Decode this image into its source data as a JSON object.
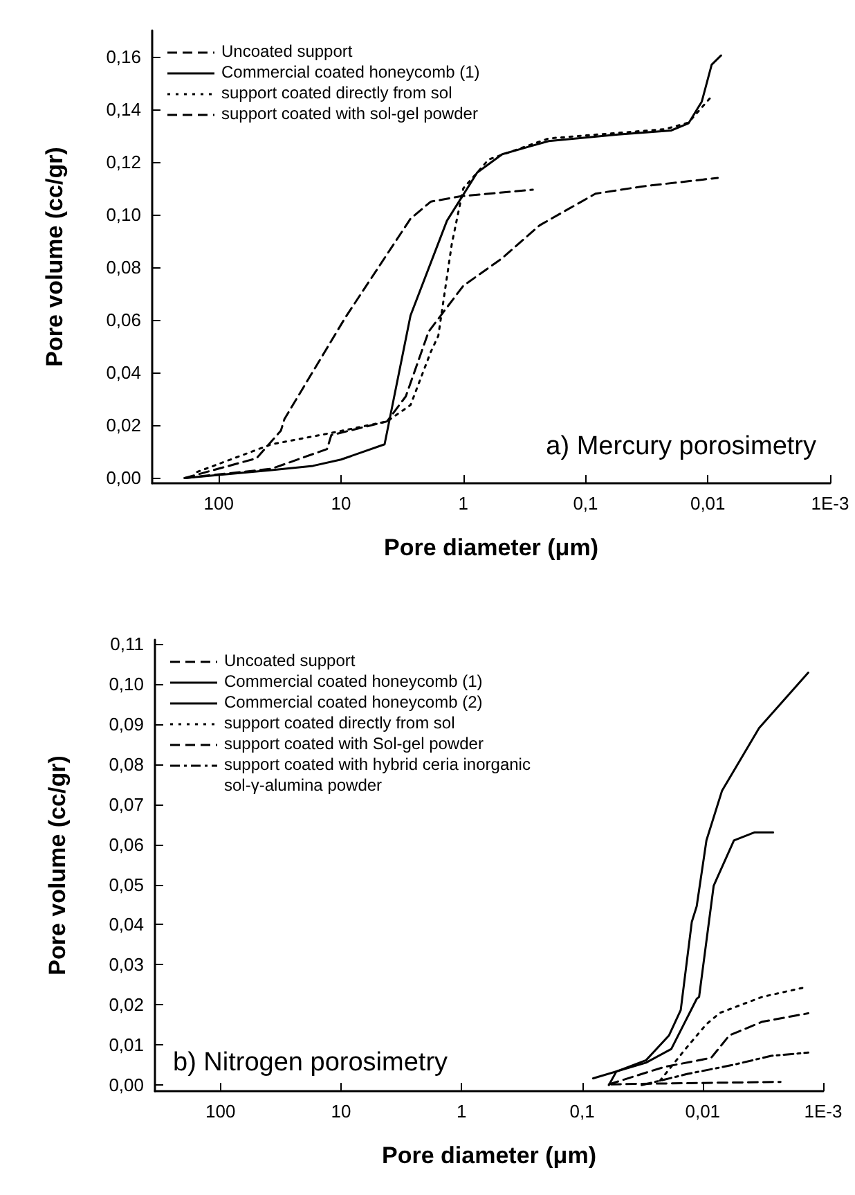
{
  "chart_data": [
    {
      "type": "line",
      "xlabel": "Pore diameter (μm)",
      "ylabel": "Pore volume (cc/gr)",
      "annotations": [
        "a) Mercury porosimetry"
      ],
      "log": "x",
      "grid": false,
      "legend": "top left",
      "marker": "none",
      "xlim": [
        350,
        0.001
      ],
      "xticks": [
        {
          "value": 100,
          "label": "100"
        },
        {
          "value": 10,
          "label": "10"
        },
        {
          "value": 1,
          "label": "1"
        },
        {
          "value": 0.1,
          "label": "0,1"
        },
        {
          "value": 0.01,
          "label": "0,01"
        },
        {
          "value": 0.001,
          "label": "1E-3"
        }
      ],
      "ylim": [
        -0.002,
        0.17
      ],
      "yticks": [
        {
          "value": 0,
          "label": "0,00"
        },
        {
          "value": 0.02,
          "label": "0,02"
        },
        {
          "value": 0.04,
          "label": "0,04"
        },
        {
          "value": 0.06,
          "label": "0,06"
        },
        {
          "value": 0.08,
          "label": "0,08"
        },
        {
          "value": 0.1,
          "label": "0,10"
        },
        {
          "value": 0.12,
          "label": "0,12"
        },
        {
          "value": 0.14,
          "label": "0,14"
        },
        {
          "value": 0.16,
          "label": "0,16"
        }
      ],
      "series": [
        {
          "name": "Uncoated support",
          "color": "#000000",
          "line_style": "dashed",
          "x": [
            190,
            49,
            31,
            29,
            9.2,
            2.7,
            1.84,
            1.05,
            0.27
          ],
          "values": [
            0,
            0.0075,
            0.018,
            0.0224,
            0.061,
            0.0985,
            0.105,
            0.107,
            0.1095
          ]
        },
        {
          "name": "Commercial coated honeycomb (1)",
          "color": "#000000",
          "line_style": "solid",
          "x": [
            190,
            37,
            17,
            10,
            4.4,
            2.7,
            1.36,
            0.77,
            0.48,
            0.2,
            0.054,
            0.02,
            0.0144,
            0.0112,
            0.0093,
            0.0078
          ],
          "values": [
            0,
            0.003,
            0.0046,
            0.007,
            0.0128,
            0.0617,
            0.0977,
            0.116,
            0.123,
            0.128,
            0.1305,
            0.132,
            0.1347,
            0.143,
            0.157,
            0.1605
          ]
        },
        {
          "name": "support coated directly from sol",
          "color": "#000000",
          "line_style": "dotted",
          "x": [
            150,
            37,
            12,
            4.2,
            2.7,
            1.84,
            1.6,
            1.24,
            1,
            0.62,
            0.2,
            0.0224,
            0.0144,
            0.0093
          ],
          "values": [
            0.0023,
            0.0128,
            0.0171,
            0.0215,
            0.0277,
            0.048,
            0.054,
            0.089,
            0.11,
            0.121,
            0.129,
            0.1325,
            0.135,
            0.145
          ]
        },
        {
          "name": "support coated with sol-gel powder",
          "color": "#000000",
          "line_style": "dashed",
          "x": [
            190,
            37,
            13,
            12,
            8.5,
            4.2,
            2.95,
            1.92,
            1,
            0.48,
            0.237,
            0.083,
            0.035,
            0.0083
          ],
          "values": [
            0,
            0.0035,
            0.011,
            0.0163,
            0.018,
            0.0215,
            0.031,
            0.0556,
            0.073,
            0.0835,
            0.096,
            0.108,
            0.1107,
            0.114
          ]
        }
      ]
    },
    {
      "type": "line",
      "xlabel": "Pore diameter (μm)",
      "ylabel": "Pore volume (cc/gr)",
      "annotations": [
        "b) Nitrogen porosimetry"
      ],
      "log": "x",
      "grid": false,
      "legend": "top left",
      "marker": "none",
      "xlim": [
        350,
        0.001
      ],
      "xticks": [
        {
          "value": 100,
          "label": "100"
        },
        {
          "value": 10,
          "label": "10"
        },
        {
          "value": 1,
          "label": "1"
        },
        {
          "value": 0.1,
          "label": "0,1"
        },
        {
          "value": 0.01,
          "label": "0,01"
        },
        {
          "value": 0.001,
          "label": "1E-3"
        }
      ],
      "ylim": [
        -0.0015,
        0.111
      ],
      "yticks": [
        {
          "value": 0,
          "label": "0,00"
        },
        {
          "value": 0.01,
          "label": "0,01"
        },
        {
          "value": 0.02,
          "label": "0,02"
        },
        {
          "value": 0.03,
          "label": "0,03"
        },
        {
          "value": 0.04,
          "label": "0,04"
        },
        {
          "value": 0.05,
          "label": "0,05"
        },
        {
          "value": 0.06,
          "label": "0,06"
        },
        {
          "value": 0.07,
          "label": "0,07"
        },
        {
          "value": 0.08,
          "label": "0,08"
        },
        {
          "value": 0.09,
          "label": "0,09"
        },
        {
          "value": 0.1,
          "label": "0,10"
        },
        {
          "value": 0.11,
          "label": "0,11"
        }
      ],
      "series": [
        {
          "name": "Uncoated support",
          "color": "#000000",
          "line_style": "dashed",
          "x": [
            0.0575,
            0.0133,
            0.00226
          ],
          "values": [
            0.0002,
            0.0005,
            0.0008
          ]
        },
        {
          "name": "Commercial coated honeycomb (1)",
          "color": "#000000",
          "line_style": "solid",
          "x": [
            0.081,
            0.0295,
            0.0182,
            0.0112,
            0.0107,
            0.0081,
            0.0055,
            0.0037,
            0.0026
          ],
          "values": [
            0.0017,
            0.0056,
            0.009,
            0.0215,
            0.022,
            0.0497,
            0.061,
            0.063,
            0.063
          ]
        },
        {
          "name": "Commercial coated honeycomb (2)",
          "color": "#000000",
          "line_style": "solid",
          "x": [
            0.06,
            0.052,
            0.0295,
            0.019,
            0.0152,
            0.0123,
            0.0112,
            0.0093,
            0.0069,
            0.0034,
            0.00133
          ],
          "values": [
            0,
            0.0034,
            0.0062,
            0.0124,
            0.0187,
            0.0407,
            0.0446,
            0.061,
            0.0734,
            0.089,
            0.1028
          ]
        },
        {
          "name": "support coated directly from sol",
          "color": "#000000",
          "line_style": "dotted",
          "x": [
            0.0226,
            0.0139,
            0.0093,
            0.0072,
            0.0032,
            0.00145
          ],
          "values": [
            0.0011,
            0.009,
            0.0152,
            0.018,
            0.022,
            0.0243
          ]
        },
        {
          "name": "support coated with Sol-gel powder",
          "color": "#000000",
          "line_style": "dashed",
          "x": [
            0.06,
            0.021,
            0.0085,
            0.006,
            0.0032,
            0.00133
          ],
          "values": [
            0.0002,
            0.0045,
            0.0068,
            0.0124,
            0.0158,
            0.0179
          ]
        },
        {
          "name": "support coated with hybrid ceria inorganic sol-γ-alumina powder",
          "color": "#000000",
          "line_style": "dashdot",
          "x": [
            0.032,
            0.0133,
            0.0055,
            0.0027,
            0.00133
          ],
          "values": [
            0,
            0.0028,
            0.0051,
            0.0073,
            0.0081
          ]
        }
      ]
    }
  ]
}
